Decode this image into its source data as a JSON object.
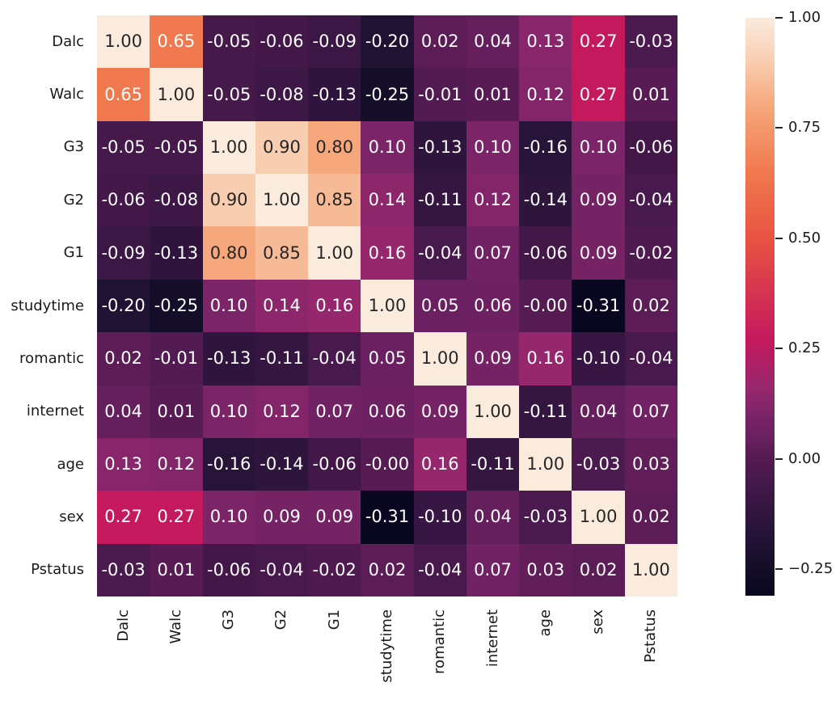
{
  "figure": {
    "kind": "seaborn-correlation-heatmap",
    "background": "#ffffff"
  },
  "chart_data": {
    "type": "heatmap",
    "title": "",
    "xlabel": "",
    "ylabel": "",
    "variables": [
      "Dalc",
      "Walc",
      "G3",
      "G2",
      "G1",
      "studytime",
      "romantic",
      "internet",
      "age",
      "sex",
      "Pstatus"
    ],
    "matrix": [
      [
        "1.00",
        "0.65",
        "-0.05",
        "-0.06",
        "-0.09",
        "-0.20",
        "0.02",
        "0.04",
        "0.13",
        "0.27",
        "-0.03"
      ],
      [
        "0.65",
        "1.00",
        "-0.05",
        "-0.08",
        "-0.13",
        "-0.25",
        "-0.01",
        "0.01",
        "0.12",
        "0.27",
        "0.01"
      ],
      [
        "-0.05",
        "-0.05",
        "1.00",
        "0.90",
        "0.80",
        "0.10",
        "-0.13",
        "0.10",
        "-0.16",
        "0.10",
        "-0.06"
      ],
      [
        "-0.06",
        "-0.08",
        "0.90",
        "1.00",
        "0.85",
        "0.14",
        "-0.11",
        "0.12",
        "-0.14",
        "0.09",
        "-0.04"
      ],
      [
        "-0.09",
        "-0.13",
        "0.80",
        "0.85",
        "1.00",
        "0.16",
        "-0.04",
        "0.07",
        "-0.06",
        "0.09",
        "-0.02"
      ],
      [
        "-0.20",
        "-0.25",
        "0.10",
        "0.14",
        "0.16",
        "1.00",
        "0.05",
        "0.06",
        "-0.00",
        "-0.31",
        "0.02"
      ],
      [
        "0.02",
        "-0.01",
        "-0.13",
        "-0.11",
        "-0.04",
        "0.05",
        "1.00",
        "0.09",
        "0.16",
        "-0.10",
        "-0.04"
      ],
      [
        "0.04",
        "0.01",
        "0.10",
        "0.12",
        "0.07",
        "0.06",
        "0.09",
        "1.00",
        "-0.11",
        "0.04",
        "0.07"
      ],
      [
        "0.13",
        "0.12",
        "-0.16",
        "-0.14",
        "-0.06",
        "-0.00",
        "0.16",
        "-0.11",
        "1.00",
        "-0.03",
        "0.03"
      ],
      [
        "0.27",
        "0.27",
        "0.10",
        "0.09",
        "0.09",
        "-0.31",
        "-0.10",
        "0.04",
        "-0.03",
        "1.00",
        "0.02"
      ],
      [
        "-0.03",
        "0.01",
        "-0.06",
        "-0.04",
        "-0.02",
        "0.02",
        "-0.04",
        "0.07",
        "0.03",
        "0.02",
        "1.00"
      ]
    ],
    "vmin": -0.31,
    "vmax": 1.0,
    "annotation_format": ".2f",
    "grid": false,
    "colormap": "rocket",
    "legend_position": "right-colorbar",
    "colorbar_ticks": [
      {
        "label": "1.00",
        "value": 1.0
      },
      {
        "label": "0.75",
        "value": 0.75
      },
      {
        "label": "0.50",
        "value": 0.5
      },
      {
        "label": "0.25",
        "value": 0.25
      },
      {
        "label": "0.00",
        "value": 0.0
      },
      {
        "label": "−0.25",
        "value": -0.25
      }
    ],
    "colors": {
      "annotation_dark": "#262626",
      "annotation_light": "#ffffff",
      "tick_label": "#1a1a1a",
      "colormap_anchors": [
        {
          "t": 0.0,
          "hex": "#090720"
        },
        {
          "t": 0.046,
          "hex": "#150e28"
        },
        {
          "t": 0.084,
          "hex": "#1f1233"
        },
        {
          "t": 0.137,
          "hex": "#2f153e"
        },
        {
          "t": 0.206,
          "hex": "#48194c"
        },
        {
          "t": 0.252,
          "hex": "#5c1c55"
        },
        {
          "t": 0.275,
          "hex": "#6b2161"
        },
        {
          "t": 0.305,
          "hex": "#762366"
        },
        {
          "t": 0.313,
          "hex": "#7b2468"
        },
        {
          "t": 0.359,
          "hex": "#97276c"
        },
        {
          "t": 0.443,
          "hex": "#c5195e"
        },
        {
          "t": 0.618,
          "hex": "#e85342"
        },
        {
          "t": 0.733,
          "hex": "#f1794f"
        },
        {
          "t": 0.847,
          "hex": "#f6a77c"
        },
        {
          "t": 0.924,
          "hex": "#f9cdb0"
        },
        {
          "t": 1.0,
          "hex": "#faebdd"
        }
      ]
    }
  }
}
